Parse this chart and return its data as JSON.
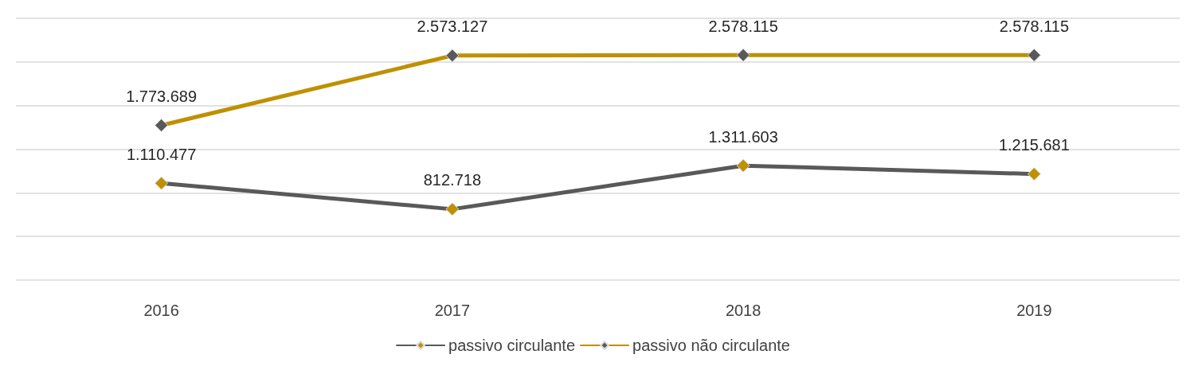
{
  "chart_data": {
    "type": "line",
    "categories": [
      "2016",
      "2017",
      "2018",
      "2019"
    ],
    "series": [
      {
        "name": "passivo circulante",
        "color": "#595959",
        "values": [
          1110477,
          812718,
          1311603,
          1215681
        ],
        "value_labels": [
          "1.110.477",
          "812.718",
          "1.311.603",
          "1.215.681"
        ]
      },
      {
        "name": "passivo não circulante",
        "color": "#bf9000",
        "values": [
          1773689,
          2573127,
          2578115,
          2578115
        ],
        "value_labels": [
          "1.773.689",
          "2.573.127",
          "2.578.115",
          "2.578.115"
        ]
      }
    ],
    "tick_labels": "x",
    "grid": "y",
    "legend": "bottom",
    "marker": "diamond",
    "line_style": "solid"
  }
}
